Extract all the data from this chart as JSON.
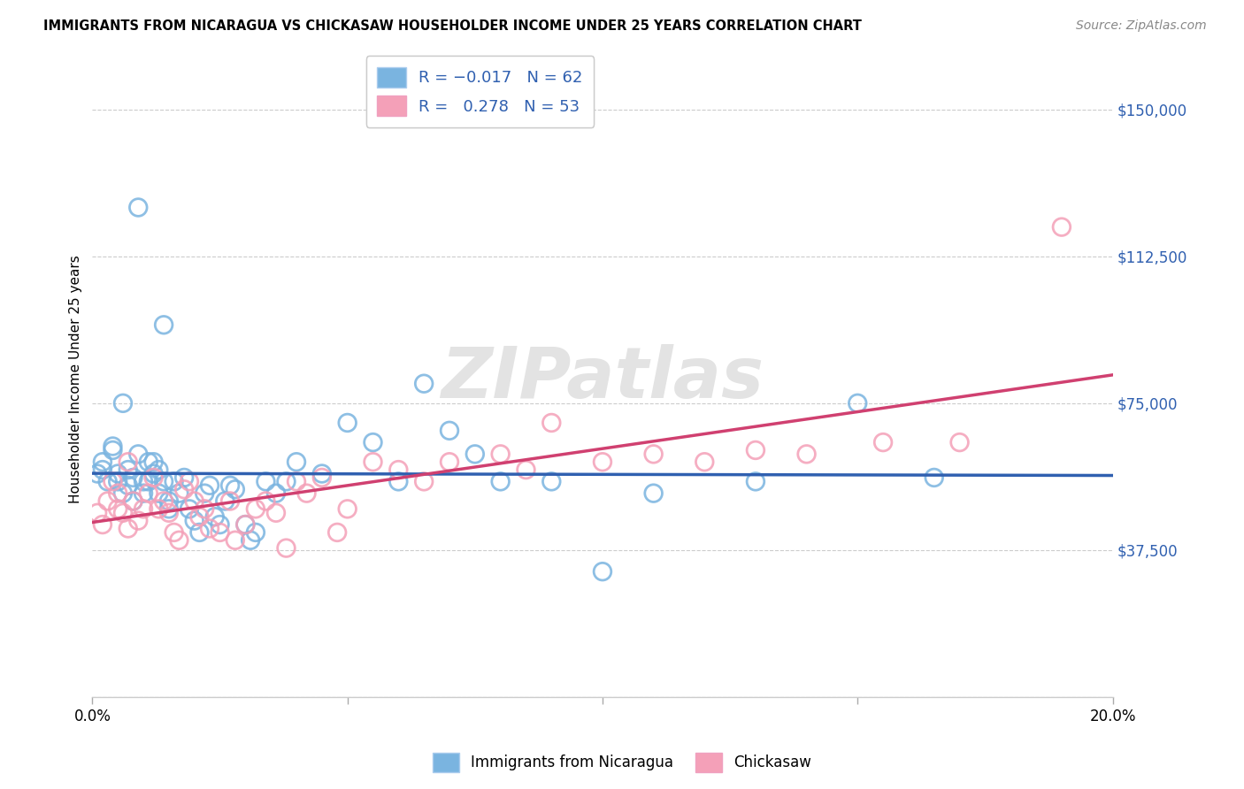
{
  "title": "IMMIGRANTS FROM NICARAGUA VS CHICKASAW HOUSEHOLDER INCOME UNDER 25 YEARS CORRELATION CHART",
  "source": "Source: ZipAtlas.com",
  "ylabel": "Householder Income Under 25 years",
  "legend_label1": "Immigrants from Nicaragua",
  "legend_label2": "Chickasaw",
  "R1": -0.017,
  "N1": 62,
  "R2": 0.278,
  "N2": 53,
  "color1": "#7ab4e0",
  "color2": "#f4a0b8",
  "line_color1": "#3060b0",
  "line_color2": "#d04070",
  "ytick_color": "#3060b0",
  "xlim": [
    0.0,
    0.2
  ],
  "ylim": [
    0,
    162500
  ],
  "yticks": [
    0,
    37500,
    75000,
    112500,
    150000
  ],
  "ytick_labels": [
    "",
    "$37,500",
    "$75,000",
    "$112,500",
    "$150,000"
  ],
  "xticks": [
    0.0,
    0.05,
    0.1,
    0.15,
    0.2
  ],
  "xtick_labels": [
    "0.0%",
    "",
    "",
    "",
    "20.0%"
  ],
  "watermark": "ZIPatlas",
  "blue_x": [
    0.001,
    0.002,
    0.002,
    0.003,
    0.004,
    0.004,
    0.005,
    0.005,
    0.006,
    0.006,
    0.007,
    0.007,
    0.008,
    0.008,
    0.009,
    0.009,
    0.01,
    0.01,
    0.011,
    0.011,
    0.012,
    0.012,
    0.013,
    0.013,
    0.014,
    0.014,
    0.015,
    0.015,
    0.016,
    0.017,
    0.018,
    0.019,
    0.02,
    0.021,
    0.022,
    0.023,
    0.024,
    0.025,
    0.026,
    0.027,
    0.028,
    0.03,
    0.031,
    0.032,
    0.034,
    0.036,
    0.038,
    0.04,
    0.045,
    0.05,
    0.055,
    0.06,
    0.065,
    0.07,
    0.075,
    0.08,
    0.09,
    0.1,
    0.11,
    0.13,
    0.15,
    0.165
  ],
  "blue_y": [
    57000,
    60000,
    58000,
    55000,
    64000,
    63000,
    55000,
    57000,
    52000,
    75000,
    54000,
    58000,
    50000,
    56000,
    62000,
    125000,
    52000,
    55000,
    60000,
    55000,
    60000,
    57000,
    58000,
    52000,
    55000,
    95000,
    48000,
    50000,
    55000,
    52000,
    56000,
    48000,
    45000,
    42000,
    52000,
    54000,
    46000,
    44000,
    50000,
    54000,
    53000,
    44000,
    40000,
    42000,
    55000,
    52000,
    55000,
    60000,
    57000,
    70000,
    65000,
    55000,
    80000,
    68000,
    62000,
    55000,
    55000,
    32000,
    52000,
    55000,
    75000,
    56000
  ],
  "pink_x": [
    0.001,
    0.002,
    0.003,
    0.004,
    0.005,
    0.005,
    0.006,
    0.007,
    0.007,
    0.008,
    0.009,
    0.01,
    0.011,
    0.012,
    0.013,
    0.014,
    0.015,
    0.016,
    0.017,
    0.018,
    0.019,
    0.02,
    0.021,
    0.022,
    0.023,
    0.025,
    0.027,
    0.028,
    0.03,
    0.032,
    0.034,
    0.036,
    0.038,
    0.04,
    0.042,
    0.045,
    0.048,
    0.05,
    0.055,
    0.06,
    0.065,
    0.07,
    0.08,
    0.085,
    0.09,
    0.1,
    0.11,
    0.12,
    0.13,
    0.14,
    0.155,
    0.17,
    0.19
  ],
  "pink_y": [
    47000,
    44000,
    50000,
    55000,
    52000,
    48000,
    47000,
    43000,
    60000,
    50000,
    45000,
    48000,
    52000,
    56000,
    48000,
    50000,
    47000,
    42000,
    40000,
    53000,
    55000,
    50000,
    46000,
    48000,
    43000,
    42000,
    50000,
    40000,
    44000,
    48000,
    50000,
    47000,
    38000,
    55000,
    52000,
    56000,
    42000,
    48000,
    60000,
    58000,
    55000,
    60000,
    62000,
    58000,
    70000,
    60000,
    62000,
    60000,
    63000,
    62000,
    65000,
    65000,
    120000
  ]
}
